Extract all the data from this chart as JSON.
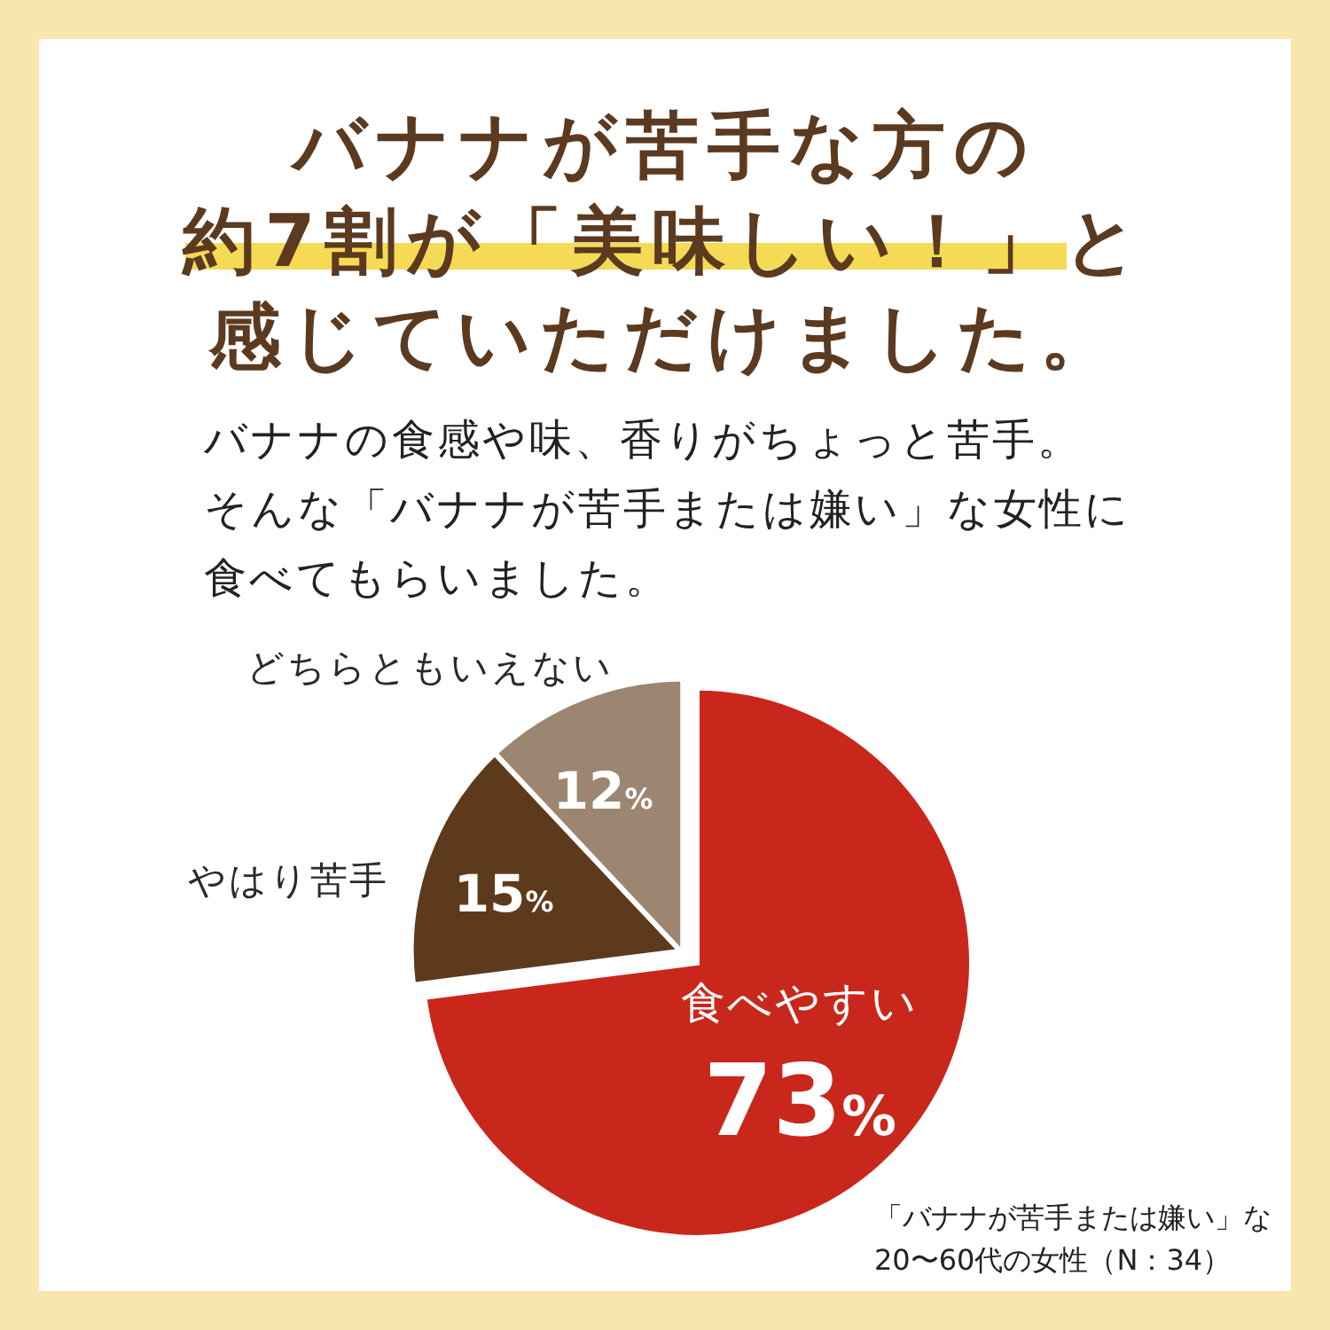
{
  "chart_data": {
    "type": "pie",
    "title": "バナナが苦手な方の約7割が「美味しい！」と感じていただけました。",
    "subtitle": "バナナの食感や味、香りがちょっと苦手。そんな「バナナが苦手または嫌い」な女性に食べてもらいました。",
    "categories": [
      "食べやすい",
      "やはり苦手",
      "どちらともいえない"
    ],
    "values": [
      73,
      15,
      12
    ],
    "colors": [
      "#c9271c",
      "#5e3a1d",
      "#9c8672"
    ],
    "value_labels": [
      "73%",
      "15%",
      "12%"
    ],
    "annotations": [
      "「バナナが苦手または嫌い」な20〜60代の女性（N：34）"
    ]
  }
}
